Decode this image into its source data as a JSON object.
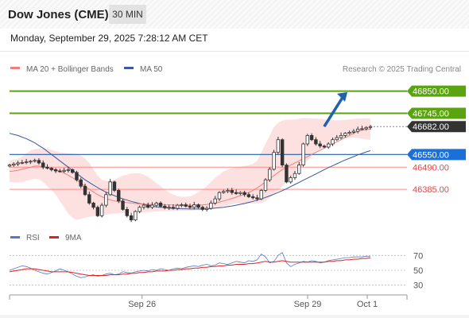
{
  "header": {
    "title": "Dow Jones (CME)",
    "timeframe": "30 MIN"
  },
  "datetime": "Monday, September 29, 2025 7:28:12 AM CET",
  "colors": {
    "green": "#5aa40f",
    "blue": "#2060b0",
    "red": "#ee4444",
    "dark": "#333333",
    "ma20": "#f08080",
    "ma50": "#3a5a9a",
    "band": "#fde0e0"
  },
  "chart_data": {
    "type": "candlestick",
    "legend": [
      {
        "name": "MA 20 + Bollinger Bands",
        "color": "#f08080"
      },
      {
        "name": "MA 50",
        "color": "#3a5a9a"
      }
    ],
    "credit": "Research © 2025 Trading Central",
    "ylim": [
      46220,
      46920
    ],
    "xlim": [
      0,
      120
    ],
    "x_ticks": [
      {
        "label": "Sep 26",
        "x": 40
      },
      {
        "label": "Sep 29",
        "x": 90
      },
      {
        "label": "Oct 1",
        "x": 108
      }
    ],
    "levels": [
      {
        "value": 46850.0,
        "label": "46850.00",
        "style": "green-line"
      },
      {
        "value": 46745.0,
        "label": "46745.00",
        "style": "green-line"
      },
      {
        "value": 46682.0,
        "label": "46682.00",
        "style": "last-price"
      },
      {
        "value": 46550.0,
        "label": "46550.00",
        "style": "blue-line"
      },
      {
        "value": 46490.0,
        "label": "46490.00",
        "style": "red-line"
      },
      {
        "value": 46385.0,
        "label": "46385.00",
        "style": "red-line"
      }
    ],
    "forecast_arrow": {
      "from": [
        95,
        46682
      ],
      "to": [
        102,
        46845
      ]
    },
    "candles_close": [
      46500,
      46505,
      46510,
      46512,
      46515,
      46518,
      46522,
      46510,
      46490,
      46485,
      46478,
      46472,
      46470,
      46475,
      46478,
      46465,
      46430,
      46400,
      46360,
      46320,
      46300,
      46260,
      46310,
      46360,
      46420,
      46380,
      46330,
      46290,
      46260,
      46240,
      46280,
      46300,
      46310,
      46300,
      46310,
      46320,
      46305,
      46298,
      46300,
      46295,
      46310,
      46312,
      46305,
      46300,
      46312,
      46300,
      46290,
      46295,
      46320,
      46340,
      46370,
      46375,
      46380,
      46370,
      46365,
      46370,
      46360,
      46350,
      46345,
      46340,
      46380,
      46430,
      46480,
      46560,
      46620,
      46500,
      46420,
      46440,
      46460,
      46500,
      46600,
      46640,
      46620,
      46600,
      46590,
      46585,
      46600,
      46620,
      46630,
      46640,
      46650,
      46655,
      46660,
      46670,
      46672,
      46678,
      46682
    ],
    "ma20": [
      46470,
      46472,
      46475,
      46480,
      46485,
      46490,
      46495,
      46495,
      46492,
      46488,
      46482,
      46477,
      46470,
      46462,
      46452,
      46440,
      46428,
      46415,
      46400,
      46385,
      46372,
      46360,
      46350,
      46342,
      46335,
      46330,
      46327,
      46325,
      46322,
      46320,
      46318,
      46316,
      46315,
      46314,
      46313,
      46313,
      46312,
      46312,
      46311,
      46311,
      46310,
      46310,
      46310,
      46309,
      46309,
      46310,
      46311,
      46313,
      46316,
      46320,
      46325,
      46330,
      46336,
      46342,
      46348,
      46355,
      46362,
      46370,
      46380,
      46392,
      46405,
      46420,
      46435,
      46450,
      46465,
      46478,
      46490,
      46500,
      46510,
      46520,
      46530,
      46540,
      46550,
      46560,
      46570,
      46580,
      46590,
      46600,
      46610,
      46620,
      46630,
      46640,
      46650,
      46660,
      46665,
      46668,
      46670
    ],
    "ma50": [
      46650,
      46645,
      46640,
      46632,
      46625,
      46615,
      46605,
      46592,
      46580,
      46565,
      46550,
      46535,
      46520,
      46505,
      46490,
      46475,
      46460,
      46445,
      46430,
      46418,
      46405,
      46393,
      46382,
      46372,
      46363,
      46355,
      46347,
      46340,
      46334,
      46328,
      46323,
      46318,
      46314,
      46310,
      46306,
      46302,
      46300,
      46298,
      46296,
      46295,
      46294,
      46293,
      46293,
      46292,
      46292,
      46292,
      46292,
      46293,
      46294,
      46296,
      46298,
      46300,
      46303,
      46306,
      46310,
      46314,
      46318,
      46323,
      46328,
      46334,
      46340,
      46347,
      46354,
      46362,
      46370,
      46379,
      46388,
      46398,
      46408,
      46418,
      46428,
      46438,
      46448,
      46458,
      46468,
      46478,
      46488,
      46497,
      46506,
      46515,
      46524,
      46532,
      46540,
      46548,
      46555,
      46562,
      46568
    ],
    "band_upper": [
      46520,
      46525,
      46530,
      46540,
      46555,
      46568,
      46575,
      46578,
      46580,
      46578,
      46572,
      46565,
      46560,
      46558,
      46556,
      46555,
      46552,
      46545,
      46530,
      46510,
      46480,
      46450,
      46430,
      46425,
      46425,
      46430,
      46440,
      46450,
      46455,
      46460,
      46462,
      46460,
      46455,
      46445,
      46430,
      46415,
      46400,
      46385,
      46370,
      46360,
      46352,
      46350,
      46350,
      46352,
      46360,
      46372,
      46385,
      46400,
      46420,
      46440,
      46455,
      46470,
      46478,
      46485,
      46490,
      46492,
      46495,
      46500,
      46505,
      46520,
      46560,
      46600,
      46640,
      46680,
      46700,
      46710,
      46715,
      46715,
      46715,
      46720,
      46722,
      46722,
      46720,
      46720,
      46718,
      46716,
      46714,
      46712,
      46712,
      46712,
      46714,
      46716,
      46718,
      46720,
      46720,
      46720,
      46720
    ],
    "band_lower": [
      46420,
      46418,
      46418,
      46420,
      46425,
      46430,
      46435,
      46432,
      46420,
      46400,
      46380,
      46360,
      46330,
      46300,
      46270,
      46250,
      46240,
      46245,
      46250,
      46255,
      46258,
      46260,
      46262,
      46265,
      46268,
      46270,
      46272,
      46273,
      46274,
      46275,
      46275,
      46276,
      46277,
      46278,
      46279,
      46280,
      46281,
      46282,
      46282,
      46283,
      46283,
      46283,
      46284,
      46284,
      46285,
      46286,
      46287,
      46288,
      46290,
      46295,
      46300,
      46305,
      46310,
      46315,
      46318,
      46318,
      46318,
      46318,
      46318,
      46318,
      46320,
      46330,
      46345,
      46360,
      46380,
      46400,
      46420,
      46440,
      46460,
      46480,
      46500,
      46520,
      46540,
      46560,
      46575,
      46590,
      46600,
      46610,
      46620,
      46625,
      46630,
      46630,
      46630,
      46628,
      46625,
      46622,
      46620
    ],
    "rsi": {
      "legend": [
        {
          "name": "RSI",
          "color": "#5577cc"
        },
        {
          "name": "9MA",
          "color": "#dd2222"
        }
      ],
      "ylim": [
        20,
        80
      ],
      "ticks": [
        70,
        50,
        30
      ],
      "rsi_values": [
        50,
        52,
        54,
        56,
        55,
        53,
        50,
        48,
        46,
        45,
        47,
        49,
        52,
        50,
        48,
        45,
        42,
        40,
        41,
        43,
        44,
        42,
        43,
        45,
        46,
        44,
        45,
        48,
        47,
        46,
        48,
        49,
        50,
        49,
        51,
        50,
        52,
        51,
        50,
        52,
        53,
        52,
        54,
        55,
        56,
        55,
        57,
        58,
        56,
        57,
        60,
        59,
        58,
        60,
        62,
        61,
        60,
        63,
        62,
        64,
        72,
        68,
        60,
        62,
        70,
        74,
        60,
        55,
        58,
        60,
        62,
        61,
        63,
        62,
        60,
        61,
        63,
        64,
        65,
        66,
        67,
        67,
        68,
        68,
        68,
        69,
        69
      ],
      "ma_values": [
        48,
        49,
        50,
        51,
        52,
        52,
        52,
        51,
        50,
        49,
        48,
        48,
        48,
        48,
        48,
        47,
        46,
        45,
        44,
        43,
        43,
        43,
        43,
        43,
        44,
        44,
        44,
        45,
        45,
        46,
        46,
        47,
        47,
        48,
        48,
        49,
        49,
        49,
        50,
        50,
        51,
        51,
        52,
        52,
        53,
        53,
        54,
        54,
        55,
        55,
        56,
        56,
        57,
        57,
        58,
        58,
        58,
        59,
        59,
        60,
        61,
        62,
        61,
        61,
        62,
        63,
        62,
        61,
        61,
        61,
        61,
        61,
        61,
        61,
        61,
        61,
        62,
        62,
        63,
        63,
        64,
        64,
        65,
        65,
        66,
        66,
        67
      ]
    }
  }
}
